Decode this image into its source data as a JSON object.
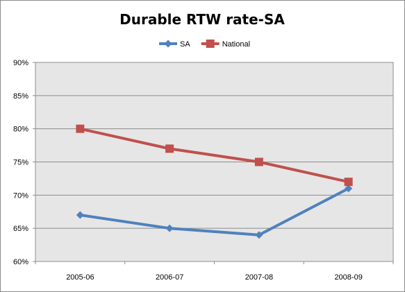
{
  "chart_data": {
    "type": "line",
    "title": "Durable RTW rate-SA",
    "categories": [
      "2005-06",
      "2006-07",
      "2007-08",
      "2008-09"
    ],
    "series": [
      {
        "name": "SA",
        "values": [
          67,
          65,
          64,
          71
        ],
        "color": "#4f81bd",
        "marker": "diamond"
      },
      {
        "name": "National",
        "values": [
          80,
          77,
          75,
          72
        ],
        "color": "#c0504d",
        "marker": "square"
      }
    ],
    "y_ticks": [
      "60%",
      "65%",
      "70%",
      "75%",
      "80%",
      "85%",
      "90%"
    ],
    "ylim": [
      60,
      90
    ],
    "y_step": 5,
    "grid": true,
    "legend_position": "top",
    "plot_background": "#e6e6e6"
  }
}
